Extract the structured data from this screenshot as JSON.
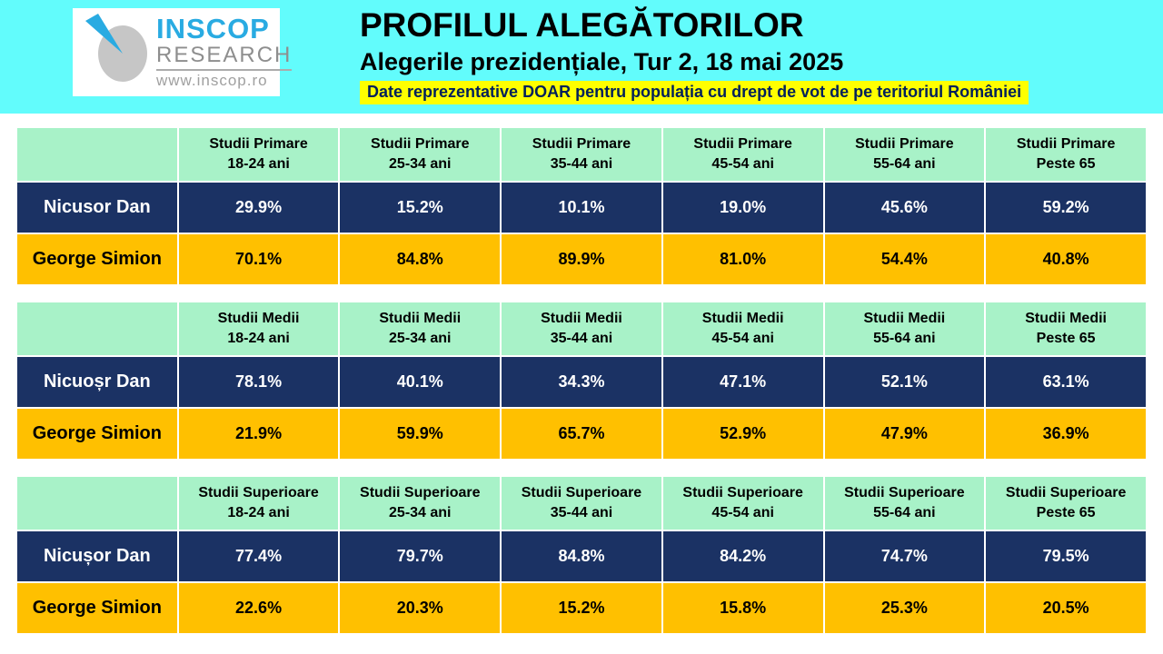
{
  "header": {
    "title": "PROFILUL ALEGĂTORILOR",
    "subtitle": "Alegerile prezidențiale, Tur 2, 18 mai 2025",
    "disclaimer": "Date reprezentative DOAR pentru populația cu drept de vot de pe teritoriul României",
    "logo": {
      "name": "INSCOP",
      "research": "RESEARCH",
      "url": "www.inscop.ro"
    }
  },
  "colors": {
    "band_cyan": "#62FCFC",
    "highlight_yellow": "#FFFF00",
    "disclaimer_text_navy": "#00205B",
    "table_header_mint": "#A8F2C8",
    "row_navy": "#1B3264",
    "row_orange": "#FFC000",
    "logo_blue": "#29ABE2",
    "logo_gray": "#8E8E8E"
  },
  "chart_data": [
    {
      "type": "table",
      "slug": "studii-primare",
      "education_label": "Studii Primare",
      "categories": [
        "18-24 ani",
        "25-34 ani",
        "35-44 ani",
        "45-54 ani",
        "55-64 ani",
        "Peste 65"
      ],
      "series": [
        {
          "name": "Nicusor Dan",
          "values": [
            29.9,
            15.2,
            10.1,
            19.0,
            45.6,
            59.2
          ]
        },
        {
          "name": "George Simion",
          "values": [
            70.1,
            84.8,
            89.9,
            81.0,
            54.4,
            40.8
          ]
        }
      ]
    },
    {
      "type": "table",
      "slug": "studii-medii",
      "education_label": "Studii Medii",
      "categories": [
        "18-24 ani",
        "25-34 ani",
        "35-44 ani",
        "45-54 ani",
        "55-64 ani",
        "Peste 65"
      ],
      "series": [
        {
          "name": "Nicuoșr Dan",
          "values": [
            78.1,
            40.1,
            34.3,
            47.1,
            52.1,
            63.1
          ]
        },
        {
          "name": "George Simion",
          "values": [
            21.9,
            59.9,
            65.7,
            52.9,
            47.9,
            36.9
          ]
        }
      ]
    },
    {
      "type": "table",
      "slug": "studii-superioare",
      "education_label": "Studii Superioare",
      "categories": [
        "18-24 ani",
        "25-34 ani",
        "35-44 ani",
        "45-54 ani",
        "55-64 ani",
        "Peste 65"
      ],
      "series": [
        {
          "name": "Nicușor Dan",
          "values": [
            77.4,
            79.7,
            84.8,
            84.2,
            74.7,
            79.5
          ]
        },
        {
          "name": "George Simion",
          "values": [
            22.6,
            20.3,
            15.2,
            15.8,
            25.3,
            20.5
          ]
        }
      ]
    }
  ]
}
